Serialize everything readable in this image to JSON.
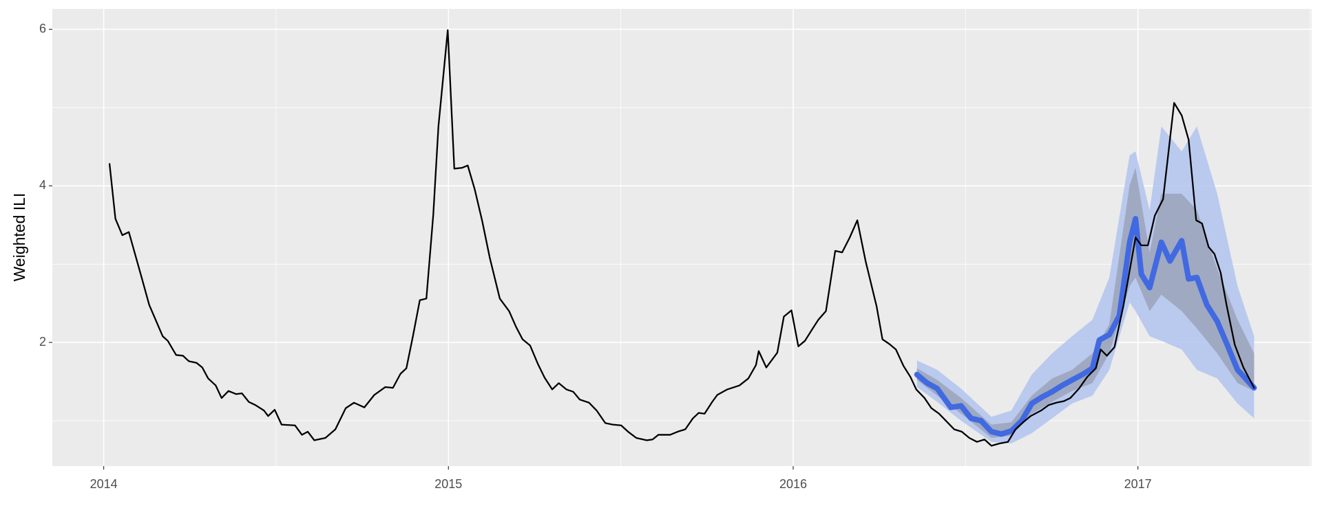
{
  "chart_data": {
    "type": "line",
    "y_label": "Weighted ILI",
    "xlim": [
      2013.851,
      2017.504
    ],
    "ylim": [
      0.42,
      6.26
    ],
    "xticks": [
      2014,
      2015,
      2016,
      2017
    ],
    "yticks": [
      2,
      4,
      6
    ],
    "grid": true,
    "bands": [
      {
        "color": "#b1c3ee",
        "x": [
          2016.359,
          2016.418,
          2016.487,
          2016.575,
          2016.633,
          2016.692,
          2016.751,
          2016.809,
          2016.868,
          2016.917,
          2016.976,
          2016.993,
          2017.034,
          2017.068,
          2017.127,
          2017.171,
          2017.23,
          2017.289,
          2017.337
        ],
        "lower": [
          1.43,
          1.24,
          1.0,
          0.73,
          0.71,
          0.84,
          1.03,
          1.22,
          1.32,
          1.65,
          2.51,
          2.4,
          2.08,
          2.02,
          1.91,
          1.65,
          1.54,
          1.22,
          1.03
        ],
        "upper": [
          1.77,
          1.65,
          1.41,
          1.05,
          1.13,
          1.59,
          1.86,
          2.08,
          2.29,
          2.83,
          4.39,
          4.44,
          3.69,
          4.76,
          4.44,
          4.76,
          3.9,
          2.72,
          2.08
        ]
      },
      {
        "color": "#9aa3b9",
        "x": [
          2016.359,
          2016.418,
          2016.487,
          2016.575,
          2016.633,
          2016.692,
          2016.751,
          2016.809,
          2016.868,
          2016.917,
          2016.976,
          2016.993,
          2017.034,
          2017.068,
          2017.127,
          2017.171,
          2017.23,
          2017.289,
          2017.337
        ],
        "lower": [
          1.52,
          1.32,
          1.09,
          0.78,
          0.81,
          1.09,
          1.24,
          1.38,
          1.48,
          1.86,
          2.72,
          2.83,
          2.4,
          2.61,
          2.4,
          2.18,
          1.86,
          1.48,
          1.38
        ],
        "upper": [
          1.67,
          1.52,
          1.29,
          0.95,
          0.98,
          1.32,
          1.54,
          1.65,
          1.86,
          2.23,
          4.01,
          4.23,
          3.15,
          3.9,
          3.9,
          3.69,
          2.94,
          2.29,
          1.86
        ]
      }
    ],
    "series": [
      {
        "color": "#4169e1",
        "x": [
          2016.359,
          2016.389,
          2016.418,
          2016.457,
          2016.487,
          2016.516,
          2016.545,
          2016.575,
          2016.604,
          2016.633,
          2016.663,
          2016.692,
          2016.721,
          2016.751,
          2016.78,
          2016.809,
          2016.839,
          2016.868,
          2016.888,
          2016.917,
          2016.946,
          2016.976,
          2016.993,
          2017.01,
          2017.034,
          2017.068,
          2017.093,
          2017.127,
          2017.147,
          2017.171,
          2017.2,
          2017.23,
          2017.259,
          2017.289,
          2017.337
        ],
        "values": [
          1.59,
          1.48,
          1.41,
          1.17,
          1.19,
          1.03,
          1.0,
          0.86,
          0.83,
          0.87,
          1.0,
          1.22,
          1.3,
          1.37,
          1.45,
          1.52,
          1.59,
          1.67,
          2.03,
          2.1,
          2.34,
          3.28,
          3.58,
          2.87,
          2.7,
          3.28,
          3.04,
          3.3,
          2.81,
          2.83,
          2.48,
          2.27,
          1.97,
          1.65,
          1.42
        ]
      },
      {
        "color": "#000000",
        "x": [
          2014.017,
          2014.034,
          2014.054,
          2014.073,
          2014.11,
          2014.132,
          2014.171,
          2014.186,
          2014.21,
          2014.23,
          2014.247,
          2014.269,
          2014.286,
          2014.303,
          2014.325,
          2014.342,
          2014.362,
          2014.384,
          2014.401,
          2014.421,
          2014.44,
          2014.465,
          2014.477,
          2014.496,
          2014.516,
          2014.555,
          2014.575,
          2014.592,
          2014.611,
          2014.643,
          2014.672,
          2014.702,
          2014.726,
          2014.756,
          2014.785,
          2014.817,
          2014.839,
          2014.861,
          2014.878,
          2014.897,
          2014.917,
          2014.936,
          2014.956,
          2014.971,
          2014.998,
          2015.017,
          2015.039,
          2015.056,
          2015.076,
          2015.098,
          2015.12,
          2015.149,
          2015.176,
          2015.196,
          2015.215,
          2015.237,
          2015.259,
          2015.279,
          2015.301,
          2015.32,
          2015.342,
          2015.362,
          2015.381,
          2015.408,
          2015.43,
          2015.455,
          2015.477,
          2015.501,
          2015.521,
          2015.545,
          2015.575,
          2015.592,
          2015.609,
          2015.643,
          2015.665,
          2015.687,
          2015.709,
          2015.726,
          2015.743,
          2015.765,
          2015.78,
          2015.809,
          2015.844,
          2015.87,
          2015.892,
          2015.9,
          2015.922,
          2015.954,
          2015.973,
          2015.995,
          2016.015,
          2016.034,
          2016.054,
          2016.073,
          2016.095,
          2016.122,
          2016.142,
          2016.164,
          2016.186,
          2016.21,
          2016.242,
          2016.259,
          2016.279,
          2016.298,
          2016.32,
          2016.34,
          2016.357,
          2016.381,
          2016.401,
          2016.423,
          2016.445,
          2016.467,
          2016.489,
          2016.511,
          2016.533,
          2016.555,
          2016.575,
          2016.599,
          2016.623,
          2016.645,
          2016.667,
          2016.689,
          2016.719,
          2016.741,
          2016.763,
          2016.785,
          2016.804,
          2016.829,
          2016.853,
          2016.878,
          2016.892,
          2016.91,
          2016.932,
          2016.958,
          2016.993,
          2017.01,
          2017.029,
          2017.049,
          2017.073,
          2017.105,
          2017.127,
          2017.147,
          2017.169,
          2017.186,
          2017.205,
          2017.222,
          2017.24,
          2017.257,
          2017.281,
          2017.306,
          2017.337
        ],
        "values": [
          4.28,
          3.58,
          3.37,
          3.41,
          2.83,
          2.48,
          2.08,
          2.02,
          1.84,
          1.83,
          1.76,
          1.74,
          1.68,
          1.54,
          1.45,
          1.29,
          1.38,
          1.34,
          1.35,
          1.24,
          1.2,
          1.13,
          1.06,
          1.14,
          0.95,
          0.94,
          0.82,
          0.86,
          0.75,
          0.78,
          0.89,
          1.16,
          1.23,
          1.17,
          1.33,
          1.43,
          1.42,
          1.6,
          1.67,
          2.08,
          2.54,
          2.56,
          3.63,
          4.76,
          5.99,
          4.22,
          4.23,
          4.26,
          3.96,
          3.55,
          3.08,
          2.56,
          2.4,
          2.2,
          2.04,
          1.96,
          1.73,
          1.55,
          1.4,
          1.48,
          1.4,
          1.37,
          1.27,
          1.23,
          1.13,
          0.97,
          0.95,
          0.94,
          0.86,
          0.78,
          0.75,
          0.76,
          0.82,
          0.82,
          0.86,
          0.89,
          1.03,
          1.1,
          1.09,
          1.24,
          1.33,
          1.4,
          1.45,
          1.54,
          1.71,
          1.89,
          1.68,
          1.87,
          2.33,
          2.41,
          1.95,
          2.02,
          2.16,
          2.29,
          2.4,
          3.17,
          3.15,
          3.34,
          3.56,
          3.04,
          2.46,
          2.04,
          1.98,
          1.91,
          1.7,
          1.56,
          1.4,
          1.29,
          1.16,
          1.09,
          0.99,
          0.89,
          0.86,
          0.78,
          0.73,
          0.76,
          0.68,
          0.71,
          0.73,
          0.89,
          0.98,
          1.06,
          1.13,
          1.2,
          1.23,
          1.25,
          1.29,
          1.41,
          1.56,
          1.67,
          1.91,
          1.83,
          1.94,
          2.47,
          3.34,
          3.24,
          3.24,
          3.62,
          3.83,
          5.06,
          4.9,
          4.59,
          3.56,
          3.52,
          3.22,
          3.13,
          2.89,
          2.48,
          1.97,
          1.68,
          1.42
        ]
      }
    ]
  }
}
